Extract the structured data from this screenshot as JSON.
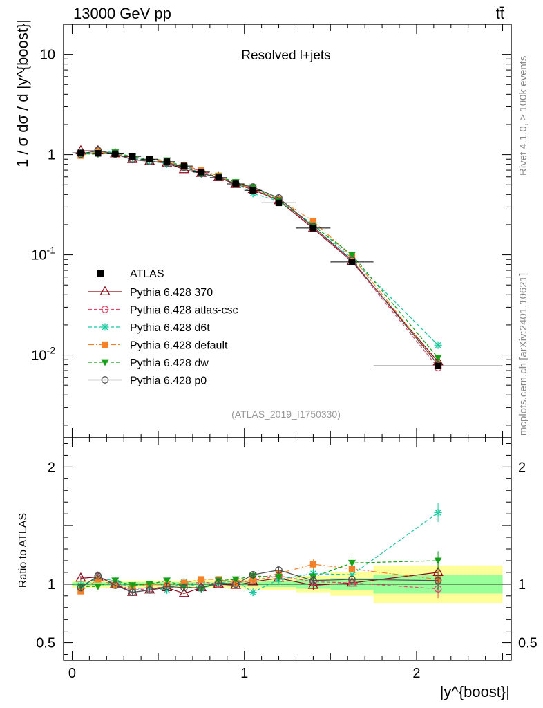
{
  "header": {
    "energy_label": "13000 GeV pp",
    "process_label": "tt̄",
    "side_label_top": "Rivet 4.1.0, ≥ 100k events",
    "side_label_bottom": "mcplots.cern.ch [arXiv:2401.10621]",
    "analysis_id": "(ATLAS_2019_I1750330)"
  },
  "chart_data": {
    "type": "line",
    "title": "Resolved l+jets",
    "xlabel": "|y^{boost}|",
    "ylabel": "1 / σ dσ / d |y^{boost}|",
    "ratio_ylabel": "Ratio to ATLAS",
    "xlim": [
      -0.05,
      2.55
    ],
    "ylim_main": [
      0.0015,
      20
    ],
    "ylim_ratio": [
      0.35,
      2.25
    ],
    "x_ticks": [
      "0",
      "1",
      "2"
    ],
    "y_ticks_main": [
      "10",
      "1",
      "10^-1",
      "10^-2"
    ],
    "y_ticks_ratio": [
      "2",
      "1",
      "0.5"
    ],
    "bins": [
      [
        0,
        0.1
      ],
      [
        0.1,
        0.2
      ],
      [
        0.2,
        0.3
      ],
      [
        0.3,
        0.4
      ],
      [
        0.4,
        0.5
      ],
      [
        0.5,
        0.6
      ],
      [
        0.6,
        0.7
      ],
      [
        0.7,
        0.8
      ],
      [
        0.8,
        0.9
      ],
      [
        0.9,
        1.0
      ],
      [
        1.0,
        1.1
      ],
      [
        1.1,
        1.3
      ],
      [
        1.3,
        1.5
      ],
      [
        1.5,
        1.75
      ],
      [
        1.75,
        2.5
      ]
    ],
    "x": [
      0.05,
      0.15,
      0.25,
      0.35,
      0.45,
      0.55,
      0.65,
      0.75,
      0.85,
      0.95,
      1.05,
      1.2,
      1.4,
      1.625,
      2.125
    ],
    "data": {
      "name": "ATLAS",
      "values": [
        1.04,
        1.03,
        1.02,
        0.96,
        0.9,
        0.85,
        0.77,
        0.67,
        0.59,
        0.51,
        0.44,
        0.33,
        0.185,
        0.085,
        0.0078
      ],
      "stat_band": [
        0.015,
        0.015,
        0.015,
        0.015,
        0.015,
        0.015,
        0.015,
        0.015,
        0.015,
        0.02,
        0.02,
        0.025,
        0.04,
        0.05,
        0.08
      ],
      "total_band": [
        0.03,
        0.03,
        0.03,
        0.03,
        0.03,
        0.03,
        0.03,
        0.035,
        0.035,
        0.04,
        0.045,
        0.05,
        0.07,
        0.1,
        0.16
      ]
    },
    "series": [
      {
        "name": "Pythia 6.428 370",
        "color": "#8b0b1c",
        "dash": "",
        "marker": "triangle-open",
        "ratio": [
          1.05,
          1.06,
          1.0,
          0.93,
          0.95,
          0.97,
          0.92,
          0.97,
          1.0,
          0.99,
          1.02,
          1.05,
          0.99,
          1.01,
          1.1
        ],
        "ratio_err": [
          0.02,
          0.02,
          0.02,
          0.02,
          0.02,
          0.02,
          0.02,
          0.02,
          0.02,
          0.02,
          0.03,
          0.03,
          0.04,
          0.05,
          0.08
        ]
      },
      {
        "name": "Pythia 6.428 atlas-csc",
        "color": "#e04a6a",
        "dash": "5,3",
        "marker": "circle-open",
        "ratio": [
          0.97,
          1.07,
          1.0,
          0.95,
          0.96,
          0.98,
          0.99,
          1.02,
          1.0,
          1.01,
          1.03,
          1.07,
          1.02,
          1.01,
          0.96
        ],
        "ratio_err": [
          0.02,
          0.02,
          0.02,
          0.02,
          0.02,
          0.02,
          0.02,
          0.02,
          0.02,
          0.02,
          0.03,
          0.03,
          0.04,
          0.05,
          0.08
        ]
      },
      {
        "name": "Pythia 6.428 d6t",
        "color": "#19c8a0",
        "dash": "5,3",
        "marker": "star",
        "ratio": [
          0.99,
          1.05,
          1.03,
          0.96,
          0.97,
          0.95,
          1.02,
          0.96,
          1.01,
          1.03,
          0.93,
          1.04,
          1.09,
          1.08,
          1.61
        ],
        "ratio_err": [
          0.02,
          0.02,
          0.02,
          0.02,
          0.02,
          0.02,
          0.02,
          0.02,
          0.02,
          0.02,
          0.03,
          0.03,
          0.04,
          0.05,
          0.08
        ]
      },
      {
        "name": "Pythia 6.428 default",
        "color": "#f48028",
        "dash": "8,3,2,3",
        "marker": "square",
        "ratio": [
          0.94,
          1.04,
          0.99,
          0.98,
          1.0,
          0.99,
          1.01,
          1.04,
          1.04,
          1.01,
          1.04,
          1.09,
          1.17,
          1.13,
          1.04
        ],
        "ratio_err": [
          0.02,
          0.02,
          0.02,
          0.02,
          0.02,
          0.02,
          0.02,
          0.02,
          0.02,
          0.02,
          0.03,
          0.03,
          0.04,
          0.05,
          0.08
        ]
      },
      {
        "name": "Pythia 6.428 dw",
        "color": "#17a017",
        "dash": "5,3",
        "marker": "triangle-down",
        "ratio": [
          0.98,
          0.98,
          1.03,
          0.99,
          1.0,
          1.03,
          0.98,
          0.96,
          1.03,
          1.04,
          1.07,
          1.06,
          1.06,
          1.18,
          1.2
        ],
        "ratio_err": [
          0.02,
          0.02,
          0.02,
          0.02,
          0.02,
          0.02,
          0.02,
          0.02,
          0.02,
          0.02,
          0.03,
          0.03,
          0.04,
          0.05,
          0.08
        ]
      },
      {
        "name": "Pythia 6.428 p0",
        "color": "#505050",
        "dash": "",
        "marker": "circle-open",
        "ratio": [
          0.97,
          1.07,
          0.99,
          0.93,
          0.95,
          0.98,
          0.97,
          0.97,
          1.01,
          1.0,
          1.08,
          1.12,
          1.03,
          1.04,
          1.03
        ],
        "ratio_err": [
          0.02,
          0.02,
          0.02,
          0.02,
          0.02,
          0.02,
          0.02,
          0.02,
          0.02,
          0.02,
          0.03,
          0.03,
          0.04,
          0.05,
          0.08
        ]
      }
    ]
  }
}
